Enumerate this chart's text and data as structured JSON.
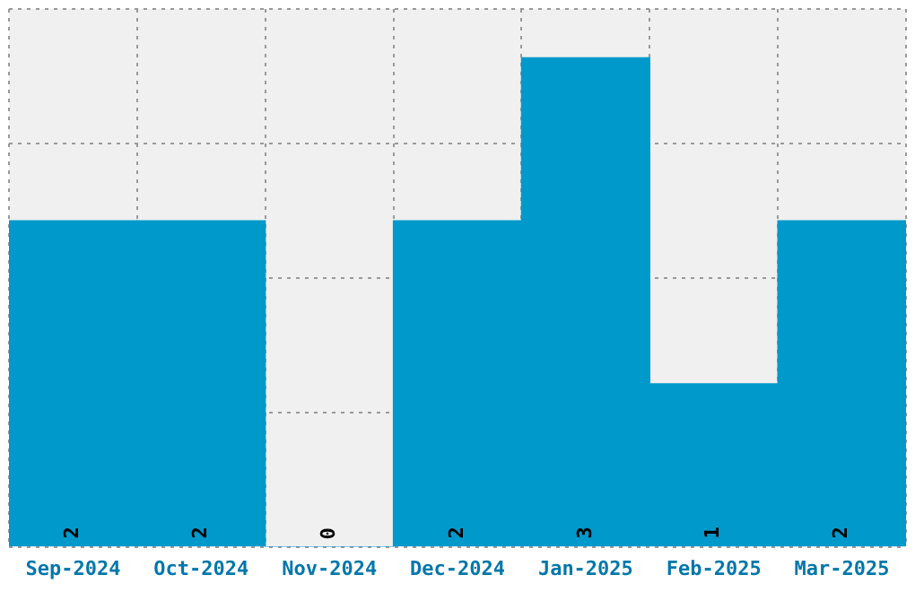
{
  "chart_data": {
    "type": "bar",
    "categories": [
      "Sep-2024",
      "Oct-2024",
      "Nov-2024",
      "Dec-2024",
      "Jan-2025",
      "Feb-2025",
      "Mar-2025"
    ],
    "values": [
      2,
      2,
      0,
      2,
      3,
      1,
      2
    ],
    "color": "#0099cc",
    "data_labels": true,
    "grid": true,
    "legend": false,
    "tick_labels": "x",
    "ylim": [
      0,
      3.3
    ],
    "yticks": [
      {
        "value": 0,
        "label": null
      },
      {
        "value": 0.825,
        "label": null
      },
      {
        "value": 1.65,
        "label": null
      },
      {
        "value": 2.475,
        "label": null
      },
      {
        "value": 3.3,
        "label": null
      }
    ]
  }
}
